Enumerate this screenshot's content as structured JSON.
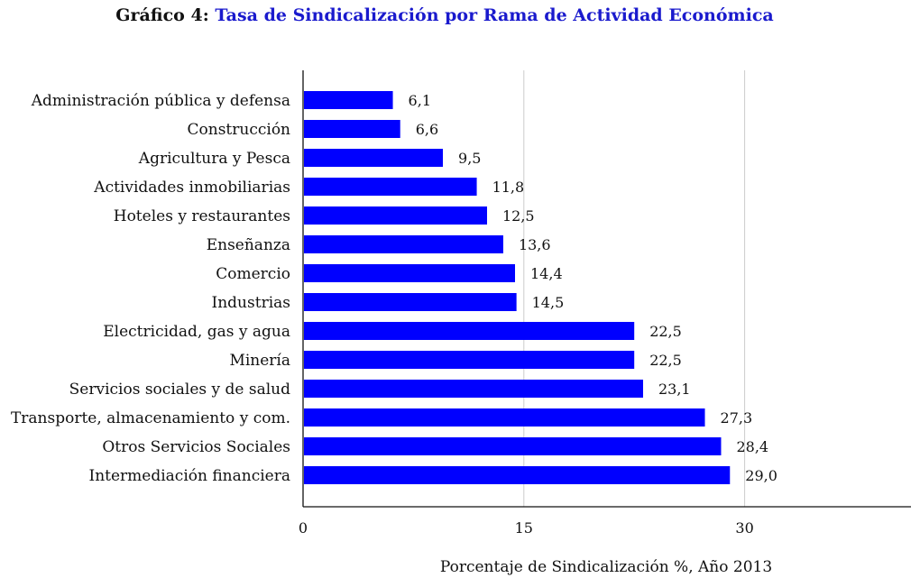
{
  "header": {
    "prefix": "Gráfico 4:",
    "title": "Tasa de Sindicalización por Rama de Actividad Económica"
  },
  "colors": {
    "bar": "#0000ff",
    "title_accent": "#1a1acd",
    "grid": "#cccccc",
    "axis": "#111111"
  },
  "chart_data": {
    "type": "bar",
    "orientation": "horizontal",
    "title": "Tasa de Sindicalización por Rama de Actividad Económica",
    "xlabel": "Porcentaje de Sindicalización %, Año 2013",
    "ylabel": "",
    "xlim": [
      0,
      41.3
    ],
    "xticks": [
      0,
      15,
      30
    ],
    "xtick_labels": [
      "0",
      "15",
      "30"
    ],
    "grid": true,
    "categories": [
      "Administración pública y defensa",
      "Construcción",
      "Agricultura y Pesca",
      "Actividades inmobiliarias",
      "Hoteles y restaurantes",
      "Enseñanza",
      "Comercio",
      "Industrias",
      "Electricidad, gas y agua",
      "Minería",
      "Servicios sociales y de salud",
      "Transporte, almacenamiento y com.",
      "Otros Servicios Sociales",
      "Intermediación financiera"
    ],
    "values": [
      6.1,
      6.6,
      9.5,
      11.8,
      12.5,
      13.6,
      14.4,
      14.5,
      22.5,
      22.5,
      23.1,
      27.3,
      28.4,
      29.0
    ],
    "value_labels": [
      "6,1",
      "6,6",
      "9,5",
      "11,8",
      "12,5",
      "13,6",
      "14,4",
      "14,5",
      "22,5",
      "22,5",
      "23,1",
      "27,3",
      "28,4",
      "29,0"
    ]
  }
}
